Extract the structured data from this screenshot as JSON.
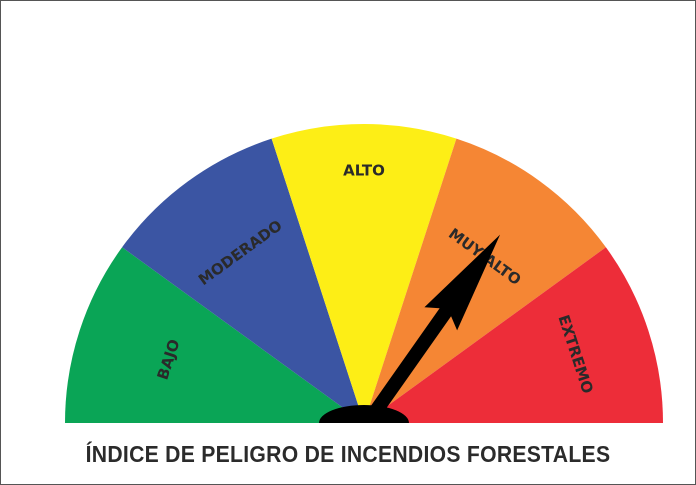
{
  "gauge": {
    "segments": [
      {
        "label": "BAJO",
        "color": "#0aa556"
      },
      {
        "label": "MODERADO",
        "color": "#3b55a3"
      },
      {
        "label": "ALTO",
        "color": "#fdee16"
      },
      {
        "label": "MUY ALTO",
        "color": "#f58634"
      },
      {
        "label": "EXTREMO",
        "color": "#ed2d39"
      }
    ],
    "selected": "MUY ALTO",
    "needle_color": "#000000"
  },
  "title": "ÍNDICE DE PELIGRO DE INCENDIOS FORESTALES"
}
